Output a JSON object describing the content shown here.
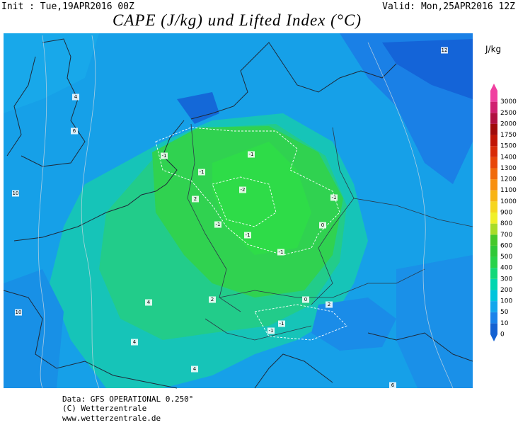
{
  "header": {
    "init": "Init : Tue,19APR2016 00Z",
    "valid": "Valid: Mon,25APR2016 12Z",
    "title": "CAPE (J/kg) und Lifted Index (°C)"
  },
  "colorbar": {
    "unit": "J/kg",
    "levels": [
      {
        "label": "0",
        "color": "#1461d2"
      },
      {
        "label": "10",
        "color": "#1a82ea"
      },
      {
        "label": "50",
        "color": "#12a6ec"
      },
      {
        "label": "100",
        "color": "#00c4dc"
      },
      {
        "label": "200",
        "color": "#00d6b0"
      },
      {
        "label": "300",
        "color": "#12d878"
      },
      {
        "label": "400",
        "color": "#28d24a"
      },
      {
        "label": "500",
        "color": "#30c838"
      },
      {
        "label": "600",
        "color": "#46c82a"
      },
      {
        "label": "700",
        "color": "#a8dc28"
      },
      {
        "label": "800",
        "color": "#f0f028"
      },
      {
        "label": "900",
        "color": "#f6d61e"
      },
      {
        "label": "1000",
        "color": "#f8b414"
      },
      {
        "label": "1100",
        "color": "#f89010"
      },
      {
        "label": "1200",
        "color": "#f06a0a"
      },
      {
        "label": "1300",
        "color": "#e84608"
      },
      {
        "label": "1400",
        "color": "#d82a06"
      },
      {
        "label": "1500",
        "color": "#c01404"
      },
      {
        "label": "1750",
        "color": "#a00a0a"
      },
      {
        "label": "2000",
        "color": "#b01040"
      },
      {
        "label": "2500",
        "color": "#d02070"
      },
      {
        "label": "3000",
        "color": "#f040a0"
      }
    ]
  },
  "contour_labels": [
    "12",
    "4",
    "6",
    "-1",
    "-1",
    "-2",
    "-1",
    "-1",
    "-1",
    "-1",
    "0",
    "-1",
    "10",
    "2",
    "10",
    "4",
    "2",
    "0",
    "-1",
    "-1",
    "2",
    "4",
    "4",
    "6"
  ],
  "footer": {
    "data": "Data: GFS OPERATIONAL 0.250°",
    "copyright": "(C) Wetterzentrale",
    "url": "www.wetterzentrale.de"
  }
}
